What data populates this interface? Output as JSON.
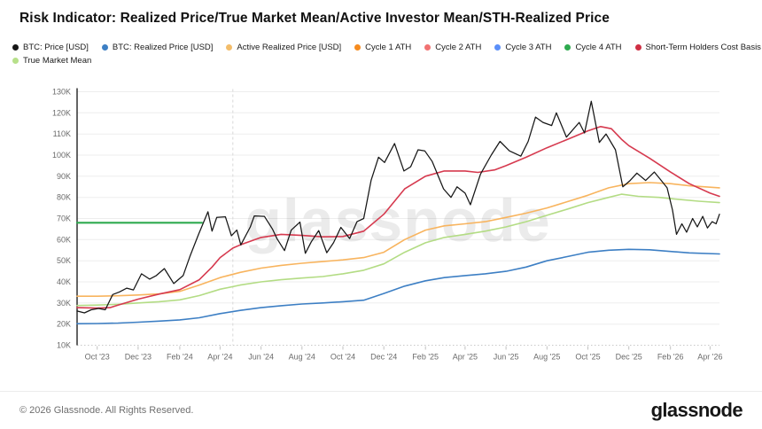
{
  "header": {
    "title": "Risk Indicator: Realized Price/True Market Mean/Active Investor Mean/STH-Realized Price"
  },
  "watermark": "glassnode",
  "footer": {
    "copyright": "© 2026 Glassnode. All Rights Reserved.",
    "brand": "glassnode"
  },
  "legend": {
    "row1": [
      {
        "label": "BTC: Price [USD]",
        "color": "#161616"
      },
      {
        "label": "BTC: Realized Price [USD]",
        "color": "#3d7fc4"
      },
      {
        "label": "Active Realized Price [USD]",
        "color": "#f3bd6a"
      },
      {
        "label": "Cycle 1 ATH",
        "color": "#f68b1e"
      },
      {
        "label": "Cycle 2 ATH",
        "color": "#f17272"
      },
      {
        "label": "Cycle 3 ATH",
        "color": "#5b8ff9"
      },
      {
        "label": "Cycle 4 ATH",
        "color": "#2eaa4f"
      },
      {
        "label": "Short-Term Holders Cost Basis",
        "color": "#cf2f44"
      }
    ],
    "row2": [
      {
        "label": "True Market Mean",
        "color": "#b7e08a"
      }
    ]
  },
  "chart_data": {
    "type": "line",
    "title": "Risk Indicator: Realized Price/True Market Mean/Active Investor Mean/STH-Realized Price",
    "unit": "thousand USD",
    "grid": true,
    "legend_position": "top",
    "x_axis": {
      "start": "2023-09-01",
      "end": "2026-04-15",
      "tick_dates": [
        "2023-10-01",
        "2023-12-01",
        "2024-02-01",
        "2024-04-01",
        "2024-06-01",
        "2024-08-01",
        "2024-10-01",
        "2024-12-01",
        "2025-02-01",
        "2025-04-01",
        "2025-06-01",
        "2025-08-01",
        "2025-10-01",
        "2025-12-01",
        "2026-02-01",
        "2026-04-01"
      ],
      "tick_labels": [
        "Oct '23",
        "Dec '23",
        "Feb '24",
        "Apr '24",
        "Jun '24",
        "Aug '24",
        "Oct '24",
        "Dec '24",
        "Feb '25",
        "Apr '25",
        "Jun '25",
        "Aug '25",
        "Oct '25",
        "Dec '25",
        "Feb '26",
        "Apr '26"
      ]
    },
    "y_axis": {
      "min": 10,
      "max": 130,
      "tick_values": [
        10,
        20,
        30,
        40,
        50,
        60,
        70,
        80,
        90,
        100,
        110,
        120,
        130
      ],
      "tick_labels": [
        "10K",
        "20K",
        "30K",
        "40K",
        "50K",
        "60K",
        "70K",
        "80K",
        "90K",
        "100K",
        "110K",
        "120K",
        "130K"
      ]
    },
    "annotations": {
      "vertical_dashed_line_date": "2024-04-20",
      "dotted_baseline_value": 10
    },
    "series": [
      {
        "id": "cycle-4-ath",
        "name": "Cycle 4 ATH",
        "color": "#2eaa4f",
        "points": [
          [
            "2023-09-01",
            68.0
          ],
          [
            "2024-03-05",
            68.0
          ]
        ]
      },
      {
        "id": "true-market-mean",
        "name": "True Market Mean",
        "color": "#b3dc84",
        "points": [
          [
            "2023-09-01",
            28.8
          ],
          [
            "2023-10-01",
            29.0
          ],
          [
            "2023-11-01",
            29.4
          ],
          [
            "2023-12-01",
            30.0
          ],
          [
            "2024-01-01",
            30.6
          ],
          [
            "2024-02-01",
            31.5
          ],
          [
            "2024-03-01",
            33.5
          ],
          [
            "2024-04-01",
            36.5
          ],
          [
            "2024-05-01",
            38.5
          ],
          [
            "2024-06-01",
            40.0
          ],
          [
            "2024-07-01",
            41.0
          ],
          [
            "2024-08-01",
            41.8
          ],
          [
            "2024-09-01",
            42.5
          ],
          [
            "2024-10-01",
            43.8
          ],
          [
            "2024-11-01",
            45.5
          ],
          [
            "2024-12-01",
            48.5
          ],
          [
            "2025-01-01",
            54.0
          ],
          [
            "2025-02-01",
            58.5
          ],
          [
            "2025-03-01",
            61.0
          ],
          [
            "2025-04-01",
            62.5
          ],
          [
            "2025-05-01",
            64.0
          ],
          [
            "2025-06-01",
            66.0
          ],
          [
            "2025-07-01",
            68.5
          ],
          [
            "2025-08-01",
            71.5
          ],
          [
            "2025-09-01",
            74.5
          ],
          [
            "2025-10-01",
            77.5
          ],
          [
            "2025-11-01",
            80.0
          ],
          [
            "2025-11-20",
            81.5
          ],
          [
            "2025-12-15",
            80.5
          ],
          [
            "2026-01-15",
            80.0
          ],
          [
            "2026-02-15",
            79.0
          ],
          [
            "2026-03-15",
            78.2
          ],
          [
            "2026-04-15",
            77.5
          ]
        ]
      },
      {
        "id": "active-realized-price",
        "name": "Active Realized Price [USD]",
        "color": "#f8b45e",
        "points": [
          [
            "2023-09-01",
            33.2
          ],
          [
            "2023-10-01",
            33.2
          ],
          [
            "2023-11-01",
            33.4
          ],
          [
            "2023-12-01",
            33.8
          ],
          [
            "2024-01-01",
            34.3
          ],
          [
            "2024-02-01",
            35.5
          ],
          [
            "2024-03-01",
            38.5
          ],
          [
            "2024-04-01",
            42.0
          ],
          [
            "2024-05-01",
            44.5
          ],
          [
            "2024-06-01",
            46.5
          ],
          [
            "2024-07-01",
            47.8
          ],
          [
            "2024-08-01",
            48.8
          ],
          [
            "2024-09-01",
            49.6
          ],
          [
            "2024-10-01",
            50.4
          ],
          [
            "2024-11-01",
            51.5
          ],
          [
            "2024-12-01",
            54.0
          ],
          [
            "2025-01-01",
            60.0
          ],
          [
            "2025-02-01",
            64.5
          ],
          [
            "2025-03-01",
            66.5
          ],
          [
            "2025-04-01",
            67.5
          ],
          [
            "2025-05-01",
            68.5
          ],
          [
            "2025-06-01",
            70.5
          ],
          [
            "2025-07-01",
            72.5
          ],
          [
            "2025-08-01",
            75.0
          ],
          [
            "2025-09-01",
            78.0
          ],
          [
            "2025-10-01",
            81.0
          ],
          [
            "2025-11-01",
            84.5
          ],
          [
            "2025-12-01",
            86.5
          ],
          [
            "2026-01-01",
            87.0
          ],
          [
            "2026-02-01",
            86.5
          ],
          [
            "2026-03-01",
            85.5
          ],
          [
            "2026-04-15",
            84.5
          ]
        ]
      },
      {
        "id": "btc-realized-price",
        "name": "BTC: Realized Price [USD]",
        "color": "#3d7fc4",
        "points": [
          [
            "2023-09-01",
            20.2
          ],
          [
            "2023-10-01",
            20.3
          ],
          [
            "2023-11-01",
            20.5
          ],
          [
            "2023-12-01",
            20.9
          ],
          [
            "2024-01-01",
            21.4
          ],
          [
            "2024-02-01",
            22.0
          ],
          [
            "2024-03-01",
            23.0
          ],
          [
            "2024-04-01",
            25.0
          ],
          [
            "2024-05-01",
            26.5
          ],
          [
            "2024-06-01",
            27.8
          ],
          [
            "2024-07-01",
            28.7
          ],
          [
            "2024-08-01",
            29.5
          ],
          [
            "2024-09-01",
            30.0
          ],
          [
            "2024-10-01",
            30.6
          ],
          [
            "2024-11-01",
            31.3
          ],
          [
            "2024-12-01",
            34.5
          ],
          [
            "2025-01-01",
            38.0
          ],
          [
            "2025-02-01",
            40.5
          ],
          [
            "2025-03-01",
            42.0
          ],
          [
            "2025-04-01",
            43.0
          ],
          [
            "2025-05-01",
            43.8
          ],
          [
            "2025-06-01",
            45.0
          ],
          [
            "2025-07-01",
            47.0
          ],
          [
            "2025-08-01",
            50.0
          ],
          [
            "2025-09-01",
            52.0
          ],
          [
            "2025-10-01",
            54.0
          ],
          [
            "2025-11-01",
            55.0
          ],
          [
            "2025-12-01",
            55.4
          ],
          [
            "2026-01-01",
            55.2
          ],
          [
            "2026-02-01",
            54.4
          ],
          [
            "2026-03-01",
            53.7
          ],
          [
            "2026-04-15",
            53.2
          ]
        ]
      },
      {
        "id": "sth-cost-basis",
        "name": "Short-Term Holders Cost Basis",
        "color": "#d63a4f",
        "points": [
          [
            "2023-09-01",
            27.8
          ],
          [
            "2023-10-01",
            27.6
          ],
          [
            "2023-10-20",
            27.8
          ],
          [
            "2023-11-01",
            29.0
          ],
          [
            "2023-12-01",
            31.8
          ],
          [
            "2024-01-01",
            34.2
          ],
          [
            "2024-02-01",
            36.3
          ],
          [
            "2024-03-01",
            41.0
          ],
          [
            "2024-03-20",
            47.0
          ],
          [
            "2024-04-01",
            51.5
          ],
          [
            "2024-04-20",
            56.0
          ],
          [
            "2024-05-01",
            57.5
          ],
          [
            "2024-06-01",
            61.0
          ],
          [
            "2024-07-01",
            62.5
          ],
          [
            "2024-08-01",
            62.0
          ],
          [
            "2024-09-01",
            61.3
          ],
          [
            "2024-10-01",
            61.5
          ],
          [
            "2024-11-01",
            64.0
          ],
          [
            "2024-12-01",
            72.0
          ],
          [
            "2025-01-01",
            84.0
          ],
          [
            "2025-02-01",
            90.0
          ],
          [
            "2025-03-01",
            92.5
          ],
          [
            "2025-04-01",
            92.5
          ],
          [
            "2025-04-20",
            91.8
          ],
          [
            "2025-05-15",
            93.0
          ],
          [
            "2025-06-01",
            95.0
          ],
          [
            "2025-07-01",
            99.0
          ],
          [
            "2025-08-01",
            103.5
          ],
          [
            "2025-09-01",
            107.5
          ],
          [
            "2025-10-01",
            111.5
          ],
          [
            "2025-10-20",
            113.5
          ],
          [
            "2025-11-05",
            112.5
          ],
          [
            "2025-11-20",
            107.5
          ],
          [
            "2025-12-01",
            104.5
          ],
          [
            "2026-01-01",
            98.5
          ],
          [
            "2026-02-01",
            92.0
          ],
          [
            "2026-03-01",
            86.5
          ],
          [
            "2026-04-01",
            82.0
          ],
          [
            "2026-04-15",
            80.5
          ]
        ]
      },
      {
        "id": "btc-price",
        "name": "BTC: Price [USD]",
        "color": "#161616",
        "points": [
          [
            "2023-09-01",
            26.2
          ],
          [
            "2023-09-12",
            25.3
          ],
          [
            "2023-09-22",
            26.8
          ],
          [
            "2023-10-03",
            27.4
          ],
          [
            "2023-10-13",
            26.8
          ],
          [
            "2023-10-24",
            34.0
          ],
          [
            "2023-11-03",
            35.2
          ],
          [
            "2023-11-14",
            37.0
          ],
          [
            "2023-11-24",
            36.2
          ],
          [
            "2023-12-06",
            43.8
          ],
          [
            "2023-12-18",
            41.3
          ],
          [
            "2023-12-28",
            43.0
          ],
          [
            "2024-01-09",
            46.3
          ],
          [
            "2024-01-23",
            39.2
          ],
          [
            "2024-02-06",
            43.0
          ],
          [
            "2024-02-16",
            52.0
          ],
          [
            "2024-02-29",
            62.5
          ],
          [
            "2024-03-14",
            73.2
          ],
          [
            "2024-03-20",
            64.0
          ],
          [
            "2024-03-27",
            70.5
          ],
          [
            "2024-04-09",
            70.8
          ],
          [
            "2024-04-18",
            61.8
          ],
          [
            "2024-04-26",
            64.5
          ],
          [
            "2024-05-02",
            57.5
          ],
          [
            "2024-05-16",
            66.0
          ],
          [
            "2024-05-22",
            71.2
          ],
          [
            "2024-06-06",
            71.0
          ],
          [
            "2024-06-18",
            65.0
          ],
          [
            "2024-06-25",
            60.3
          ],
          [
            "2024-07-06",
            54.8
          ],
          [
            "2024-07-16",
            64.5
          ],
          [
            "2024-07-29",
            68.3
          ],
          [
            "2024-08-06",
            53.5
          ],
          [
            "2024-08-15",
            59.0
          ],
          [
            "2024-08-26",
            64.3
          ],
          [
            "2024-09-07",
            53.8
          ],
          [
            "2024-09-17",
            58.5
          ],
          [
            "2024-09-28",
            65.8
          ],
          [
            "2024-10-11",
            60.5
          ],
          [
            "2024-10-22",
            68.5
          ],
          [
            "2024-11-01",
            70.0
          ],
          [
            "2024-11-12",
            88.0
          ],
          [
            "2024-11-23",
            99.0
          ],
          [
            "2024-12-02",
            96.5
          ],
          [
            "2024-12-17",
            105.5
          ],
          [
            "2024-12-31",
            92.5
          ],
          [
            "2025-01-10",
            94.5
          ],
          [
            "2025-01-21",
            102.5
          ],
          [
            "2025-01-31",
            102.0
          ],
          [
            "2025-02-11",
            97.0
          ],
          [
            "2025-02-28",
            84.0
          ],
          [
            "2025-03-11",
            80.0
          ],
          [
            "2025-03-20",
            85.0
          ],
          [
            "2025-04-01",
            82.0
          ],
          [
            "2025-04-09",
            76.5
          ],
          [
            "2025-04-24",
            91.0
          ],
          [
            "2025-05-10",
            100.0
          ],
          [
            "2025-05-23",
            106.5
          ],
          [
            "2025-06-06",
            102.0
          ],
          [
            "2025-06-23",
            99.5
          ],
          [
            "2025-07-04",
            106.5
          ],
          [
            "2025-07-15",
            118.0
          ],
          [
            "2025-07-26",
            115.5
          ],
          [
            "2025-08-08",
            114.0
          ],
          [
            "2025-08-15",
            120.0
          ],
          [
            "2025-08-30",
            108.5
          ],
          [
            "2025-09-18",
            115.5
          ],
          [
            "2025-09-26",
            110.5
          ],
          [
            "2025-10-06",
            125.5
          ],
          [
            "2025-10-18",
            106.0
          ],
          [
            "2025-10-28",
            110.0
          ],
          [
            "2025-11-11",
            102.5
          ],
          [
            "2025-11-22",
            85.0
          ],
          [
            "2025-12-03",
            88.0
          ],
          [
            "2025-12-13",
            91.5
          ],
          [
            "2025-12-26",
            88.0
          ],
          [
            "2026-01-08",
            92.0
          ],
          [
            "2026-01-17",
            88.5
          ],
          [
            "2026-01-27",
            84.5
          ],
          [
            "2026-02-04",
            74.0
          ],
          [
            "2026-02-10",
            62.5
          ],
          [
            "2026-02-18",
            67.5
          ],
          [
            "2026-02-25",
            63.5
          ],
          [
            "2026-03-06",
            70.0
          ],
          [
            "2026-03-13",
            66.0
          ],
          [
            "2026-03-21",
            71.0
          ],
          [
            "2026-03-28",
            65.5
          ],
          [
            "2026-04-04",
            68.5
          ],
          [
            "2026-04-10",
            67.5
          ],
          [
            "2026-04-15",
            72.0
          ]
        ]
      }
    ]
  }
}
